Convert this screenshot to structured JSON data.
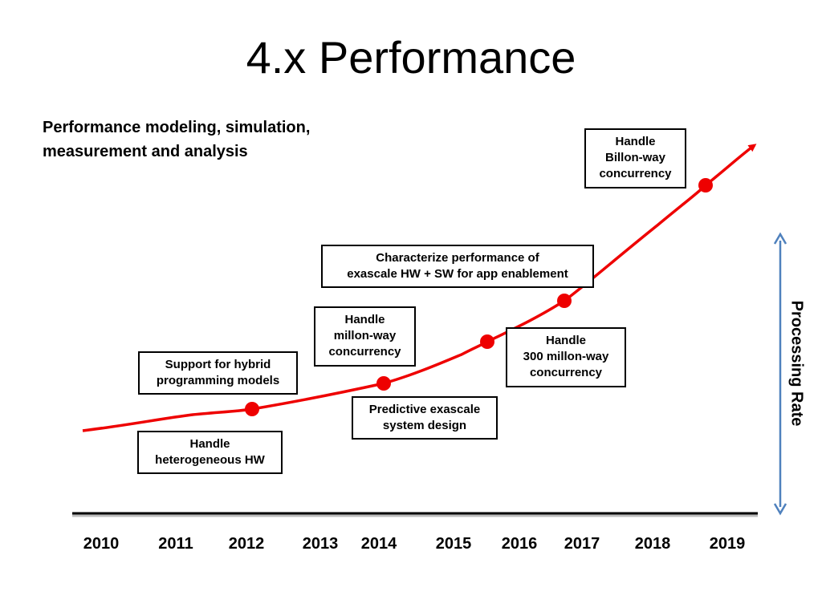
{
  "title": "4.x Performance",
  "subtitle": {
    "line1": "Performance modeling, simulation,",
    "line2": "measurement and analysis"
  },
  "axis": {
    "x_years": [
      "2010",
      "2011",
      "2012",
      "2013",
      "2014",
      "2015",
      "2016",
      "2017",
      "2018",
      "2019"
    ],
    "y_label": "Processing Rate"
  },
  "boxes": {
    "billion": [
      "Handle",
      "Billon-way",
      "concurrency"
    ],
    "characterize": [
      "Characterize performance of",
      "exascale HW + SW for app enablement"
    ],
    "million": [
      "Handle",
      "millon-way",
      "concurrency"
    ],
    "hybrid": [
      "Support for hybrid",
      "programming models"
    ],
    "million300": [
      "Handle",
      "300 millon-way",
      "concurrency"
    ],
    "predictive": [
      "Predictive exascale",
      "system design"
    ],
    "hetero": [
      "Handle",
      "heterogeneous HW"
    ]
  },
  "colors": {
    "trend_line": "#ee0000",
    "axis_arrow": "#4f81bd",
    "baseline": "#000000"
  }
}
